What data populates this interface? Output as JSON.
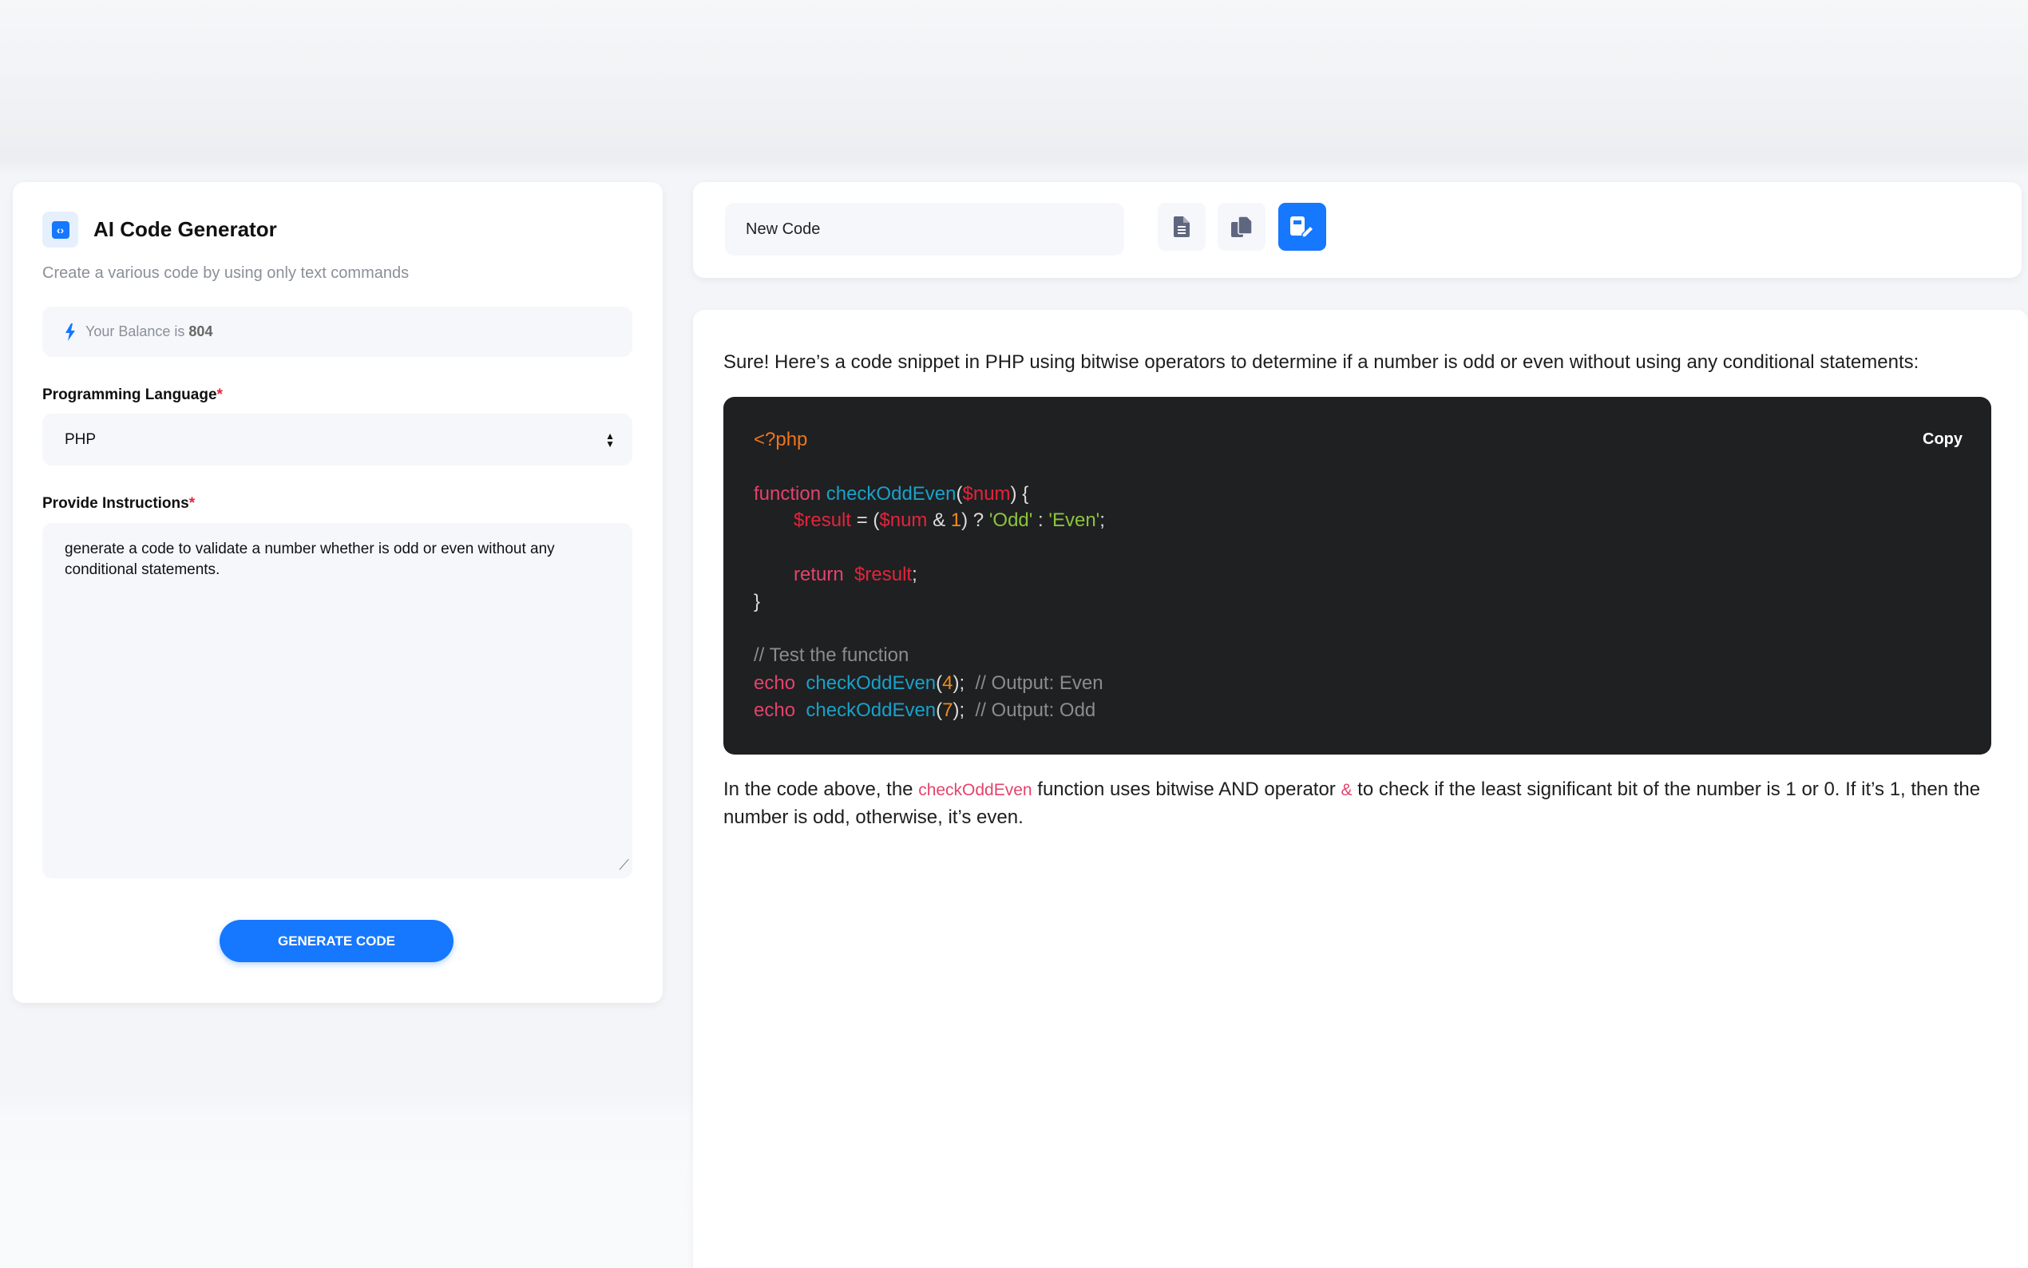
{
  "left": {
    "title": "AI Code Generator",
    "subtitle": "Create a various code by using only text commands",
    "balance_label": "Your Balance is",
    "balance_value": "804",
    "language_label": "Programming Language",
    "required_mark": "*",
    "language_value": "PHP",
    "instructions_label": "Provide Instructions",
    "instructions_value": "generate a code to validate a number whether is odd or even without any conditional statements.",
    "generate_button": "GENERATE CODE"
  },
  "toolbar": {
    "name_value": "New Code",
    "icons": [
      "document-icon",
      "copy-icon",
      "edit-document-icon"
    ],
    "accent": "#1677ff"
  },
  "result": {
    "intro": "Sure! Here’s a code snippet in PHP using bitwise operators to determine if a number is odd or even without using any conditional statements:",
    "copy_label": "Copy",
    "code": {
      "open": "<?php",
      "l1a": "function",
      "l1b": "checkOddEven",
      "l1c": "(",
      "l1d": "$num",
      "l1e": ") {",
      "l2a": "$result",
      "l2b": " = (",
      "l2c": "$num",
      "l2d": " & ",
      "l2e": "1",
      "l2f": ") ? ",
      "l2g": "'Odd'",
      "l2h": " : ",
      "l2i": "'Even'",
      "l2j": ";",
      "l3a": "return",
      "l3b": "$result",
      "l3c": ";",
      "l4": "}",
      "l5": "// Test the function",
      "l6a": "echo",
      "l6b": "checkOddEven",
      "l6c": "(",
      "l6d": "4",
      "l6e": ");",
      "l6f": "// Output: Even",
      "l7a": "echo",
      "l7b": "checkOddEven",
      "l7c": "(",
      "l7d": "7",
      "l7e": ");",
      "l7f": "// Output: Odd"
    },
    "expl_1": "In the code above, the ",
    "expl_fn": "checkOddEven",
    "expl_2": " function uses bitwise AND operator ",
    "expl_op": "&",
    "expl_3": " to check if the least significant bit of the number is 1 or 0. If it’s 1, then the number is odd, otherwise, it’s even."
  }
}
